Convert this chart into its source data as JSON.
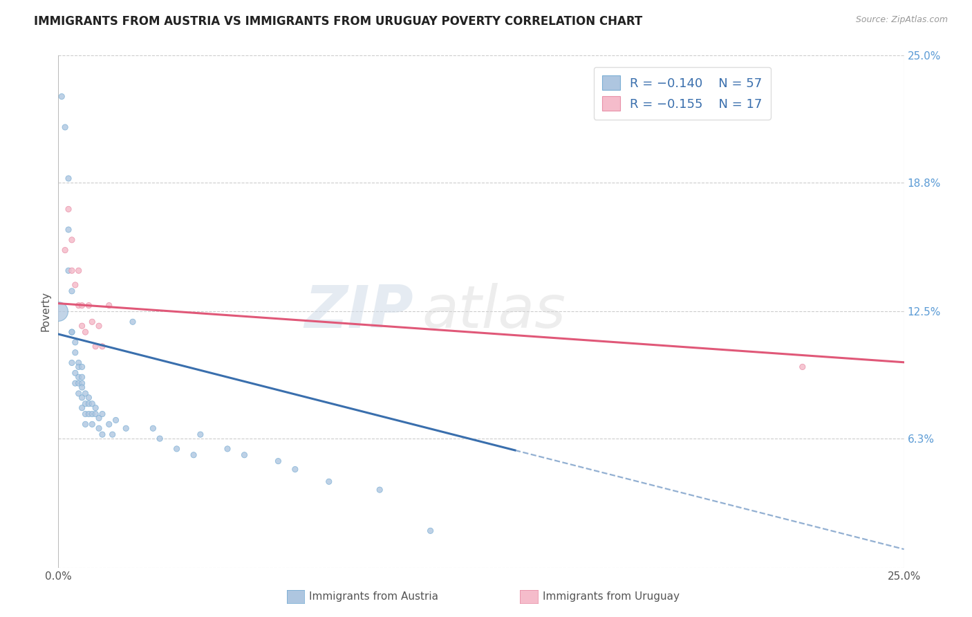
{
  "title": "IMMIGRANTS FROM AUSTRIA VS IMMIGRANTS FROM URUGUAY POVERTY CORRELATION CHART",
  "source_text": "Source: ZipAtlas.com",
  "ylabel": "Poverty",
  "xlim": [
    0.0,
    0.25
  ],
  "ylim": [
    0.0,
    0.25
  ],
  "xtick_labels": [
    "0.0%",
    "25.0%"
  ],
  "xtick_positions": [
    0.0,
    0.25
  ],
  "ytick_labels_right": [
    "25.0%",
    "18.8%",
    "12.5%",
    "6.3%"
  ],
  "ytick_positions_right": [
    0.25,
    0.188,
    0.125,
    0.063
  ],
  "grid_yticks": [
    0.25,
    0.188,
    0.125,
    0.063,
    0.0
  ],
  "austria_color": "#aec6e0",
  "austria_edge_color": "#7aaed4",
  "uruguay_color": "#f5bccb",
  "uruguay_edge_color": "#e890a8",
  "trend_austria_color": "#3a6fad",
  "trend_uruguay_color": "#e05878",
  "watermark_zip": "ZIP",
  "watermark_atlas": "atlas",
  "title_fontsize": 12,
  "austria_scatter": {
    "x": [
      0.001,
      0.002,
      0.003,
      0.003,
      0.003,
      0.004,
      0.004,
      0.004,
      0.004,
      0.005,
      0.005,
      0.005,
      0.005,
      0.006,
      0.006,
      0.006,
      0.006,
      0.006,
      0.007,
      0.007,
      0.007,
      0.007,
      0.007,
      0.007,
      0.008,
      0.008,
      0.008,
      0.008,
      0.009,
      0.009,
      0.009,
      0.01,
      0.01,
      0.01,
      0.011,
      0.011,
      0.012,
      0.012,
      0.013,
      0.013,
      0.015,
      0.016,
      0.017,
      0.02,
      0.022,
      0.028,
      0.03,
      0.035,
      0.04,
      0.042,
      0.05,
      0.055,
      0.065,
      0.07,
      0.08,
      0.095,
      0.11
    ],
    "y": [
      0.23,
      0.215,
      0.19,
      0.165,
      0.145,
      0.135,
      0.115,
      0.1,
      0.115,
      0.11,
      0.105,
      0.095,
      0.09,
      0.1,
      0.098,
      0.093,
      0.09,
      0.085,
      0.098,
      0.093,
      0.09,
      0.088,
      0.083,
      0.078,
      0.085,
      0.08,
      0.075,
      0.07,
      0.083,
      0.08,
      0.075,
      0.08,
      0.075,
      0.07,
      0.078,
      0.075,
      0.073,
      0.068,
      0.075,
      0.065,
      0.07,
      0.065,
      0.072,
      0.068,
      0.12,
      0.068,
      0.063,
      0.058,
      0.055,
      0.065,
      0.058,
      0.055,
      0.052,
      0.048,
      0.042,
      0.038,
      0.018
    ],
    "sizes": [
      35,
      35,
      35,
      35,
      35,
      35,
      35,
      35,
      35,
      35,
      35,
      35,
      35,
      35,
      35,
      35,
      35,
      35,
      35,
      35,
      35,
      35,
      35,
      35,
      35,
      35,
      35,
      35,
      35,
      35,
      35,
      35,
      35,
      35,
      35,
      35,
      35,
      35,
      35,
      35,
      35,
      35,
      35,
      35,
      35,
      35,
      35,
      35,
      35,
      35,
      35,
      35,
      35,
      35,
      35,
      35,
      35
    ]
  },
  "austria_large": {
    "x": [
      0.0
    ],
    "y": [
      0.125
    ],
    "size": 400
  },
  "uruguay_scatter": {
    "x": [
      0.002,
      0.003,
      0.004,
      0.004,
      0.005,
      0.006,
      0.006,
      0.007,
      0.007,
      0.008,
      0.009,
      0.01,
      0.011,
      0.012,
      0.013,
      0.015,
      0.22
    ],
    "y": [
      0.155,
      0.175,
      0.145,
      0.16,
      0.138,
      0.128,
      0.145,
      0.118,
      0.128,
      0.115,
      0.128,
      0.12,
      0.108,
      0.118,
      0.108,
      0.128,
      0.098
    ],
    "sizes": [
      35,
      35,
      35,
      35,
      35,
      35,
      35,
      35,
      35,
      35,
      35,
      35,
      35,
      35,
      35,
      35,
      35
    ]
  },
  "trend_austria_x0": 0.0,
  "trend_austria_y0": 0.114,
  "trend_austria_slope": -0.42,
  "trend_austria_solid_end": 0.135,
  "trend_austria_dashed_end": 0.25,
  "trend_uruguay_x0": 0.0,
  "trend_uruguay_y0": 0.129,
  "trend_uruguay_slope": -0.115,
  "trend_uruguay_x_end": 0.25
}
